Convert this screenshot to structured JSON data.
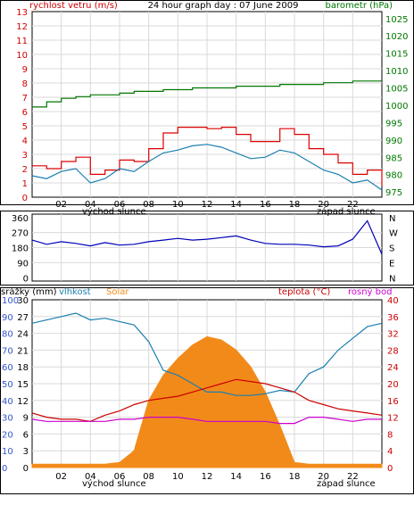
{
  "header": {
    "left_label": "rychlost vetru (m/s)",
    "title": "24 hour graph day : 07 June 2009",
    "right_label": "barometr (hPa)"
  },
  "colors": {
    "wind": "#dd0000",
    "wind_avg": "#1a7fb0",
    "pressure": "#007700",
    "direction": "#0000bb",
    "humidity": "#1a7fb0",
    "solar": "#f28a1a",
    "temperature": "#cc0000",
    "dewpoint": "#cc00cc",
    "left_axis": "#cc0000",
    "right_axis": "#007700",
    "third_left": "#3355cc",
    "grid": "#d9d9d9"
  },
  "x_axis": {
    "ticks": [
      "02",
      "04",
      "06",
      "08",
      "10",
      "12",
      "14",
      "16",
      "18",
      "20",
      "22"
    ],
    "sunrise_label": "východ slunce",
    "sunset_label": "západ slunce"
  },
  "chart_data": [
    {
      "type": "line",
      "left_axis": {
        "label": "rychlost vetru (m/s)",
        "ylim": [
          0,
          13
        ],
        "ticks": [
          0,
          1,
          2,
          3,
          4,
          5,
          6,
          7,
          8,
          9,
          10,
          11,
          12,
          13
        ]
      },
      "right_axis": {
        "label": "barometr (hPa)",
        "ylim": [
          973.5,
          1027
        ],
        "ticks": [
          975,
          980,
          985,
          990,
          995,
          1000,
          1005,
          1010,
          1015,
          1020,
          1025
        ]
      },
      "x": [
        0,
        1,
        2,
        3,
        4,
        5,
        6,
        7,
        8,
        9,
        10,
        11,
        12,
        13,
        14,
        15,
        16,
        17,
        18,
        19,
        20,
        21,
        22,
        23,
        24
      ],
      "series": [
        {
          "key": "wind",
          "axis": "left",
          "values": [
            2.2,
            2.0,
            2.5,
            2.8,
            1.6,
            1.9,
            2.6,
            2.5,
            3.4,
            4.5,
            4.9,
            4.9,
            4.8,
            4.9,
            4.4,
            3.9,
            3.9,
            4.8,
            4.4,
            3.4,
            3.0,
            2.4,
            1.6,
            1.9,
            0.8
          ]
        },
        {
          "key": "wind_avg",
          "axis": "left",
          "values": [
            1.5,
            1.3,
            1.8,
            2.0,
            1.0,
            1.3,
            2.0,
            1.8,
            2.5,
            3.1,
            3.3,
            3.6,
            3.7,
            3.5,
            3.1,
            2.7,
            2.8,
            3.3,
            3.1,
            2.5,
            1.9,
            1.6,
            1.0,
            1.2,
            0.5
          ]
        },
        {
          "key": "pressure",
          "axis": "right",
          "values": [
            999.5,
            1001,
            1002,
            1002.5,
            1003,
            1003,
            1003.5,
            1004,
            1004,
            1004.5,
            1004.5,
            1005,
            1005,
            1005,
            1005.5,
            1005.5,
            1005.5,
            1006,
            1006,
            1006,
            1006.5,
            1006.5,
            1007,
            1007,
            1007
          ]
        }
      ]
    },
    {
      "type": "line",
      "left_axis": {
        "ylim": [
          -20,
          380
        ],
        "ticks": [
          0,
          90,
          180,
          270,
          360
        ]
      },
      "right_axis": {
        "ticks": [
          "N",
          "W",
          "S",
          "E",
          "N"
        ]
      },
      "x": [
        0,
        1,
        2,
        3,
        4,
        5,
        6,
        7,
        8,
        9,
        10,
        11,
        12,
        13,
        14,
        15,
        16,
        17,
        18,
        19,
        20,
        21,
        22,
        23,
        24
      ],
      "series": [
        {
          "key": "direction",
          "values": [
            225,
            200,
            215,
            205,
            190,
            210,
            195,
            200,
            215,
            225,
            235,
            225,
            230,
            240,
            250,
            225,
            205,
            200,
            200,
            195,
            185,
            190,
            230,
            340,
            140
          ]
        }
      ]
    },
    {
      "type": "line",
      "axes": [
        {
          "label": "srážky (mm)",
          "ylim": [
            0,
            30
          ],
          "ticks": [
            0,
            3,
            6,
            9,
            12,
            15,
            18,
            21,
            24,
            27,
            30
          ]
        },
        {
          "label": "vlhkost",
          "ylim": [
            0,
            100
          ],
          "ticks": [
            0,
            10,
            20,
            30,
            40,
            50,
            60,
            70,
            80,
            90,
            100
          ]
        },
        {
          "label": "Solar",
          "ticks": []
        },
        {
          "label": "teplota (°C)",
          "ylim": [
            0,
            40
          ],
          "ticks": [
            0,
            4,
            8,
            12,
            16,
            20,
            24,
            28,
            32,
            36,
            40
          ]
        },
        {
          "label": "rosný bod",
          "ticks": []
        }
      ],
      "x": [
        0,
        1,
        2,
        3,
        4,
        5,
        6,
        7,
        8,
        9,
        10,
        11,
        12,
        13,
        14,
        15,
        16,
        17,
        18,
        19,
        20,
        21,
        22,
        23,
        24
      ],
      "series": [
        {
          "key": "humidity",
          "axis": "humidity",
          "values": [
            86,
            88,
            90,
            92,
            88,
            89,
            87,
            85,
            75,
            58,
            55,
            50,
            45,
            45,
            43,
            43,
            44,
            46,
            45,
            56,
            60,
            70,
            77,
            84,
            86
          ]
        },
        {
          "key": "solar",
          "axis": "humidity",
          "values": [
            2,
            2,
            2,
            2,
            2,
            2,
            3,
            10,
            40,
            55,
            65,
            73,
            78,
            76,
            70,
            60,
            45,
            25,
            3,
            2,
            2,
            2,
            2,
            2,
            2
          ]
        },
        {
          "key": "temperature",
          "axis": "temperature",
          "values": [
            13,
            12,
            11.5,
            11.5,
            11,
            12.5,
            13.5,
            15,
            16,
            16.5,
            17,
            18,
            19,
            20,
            21,
            20.5,
            20,
            19,
            18,
            16,
            15,
            14,
            13.5,
            13,
            12.5
          ]
        },
        {
          "key": "dewpoint",
          "axis": "temperature",
          "values": [
            11.5,
            11,
            11,
            11,
            11,
            11,
            11.5,
            11.5,
            12,
            12,
            12,
            11.5,
            11,
            11,
            11,
            11,
            11,
            10.5,
            10.5,
            12,
            12,
            11.5,
            11,
            11.5,
            11.5
          ]
        }
      ]
    }
  ]
}
